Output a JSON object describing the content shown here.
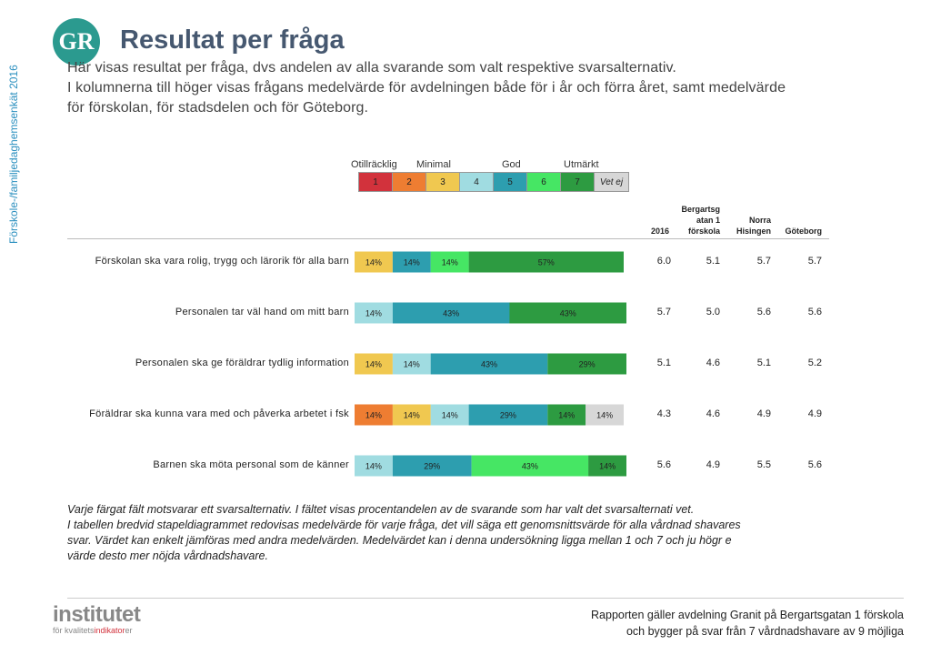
{
  "side_label": "Förskole-/familjedaghemsenkät 2016",
  "logo_text": "GR",
  "title": "Resultat per fråga",
  "intro": [
    "Här visas resultat per fråga, dvs andelen av alla svarande som valt respektive svarsalternativ.",
    "I kolumnerna till höger visas frågans medelvärde för avdelningen både för i år och förra året, samt medelvärde",
    "för förskolan, för stadsdelen och för Göteborg."
  ],
  "scale": {
    "labels": [
      "Otillräcklig",
      "Minimal",
      "God",
      "Utmärkt"
    ],
    "items": [
      {
        "label": "1",
        "color": "#d2323c"
      },
      {
        "label": "2",
        "color": "#ee7d32"
      },
      {
        "label": "3",
        "color": "#f0c850"
      },
      {
        "label": "4",
        "color": "#a0dce1"
      },
      {
        "label": "5",
        "color": "#2d9eaf"
      },
      {
        "label": "6",
        "color": "#46e664"
      },
      {
        "label": "7",
        "color": "#2d9b41"
      },
      {
        "label": "Vet ej",
        "color": "#d7d7d7"
      }
    ]
  },
  "columns": {
    "year": "2016",
    "forskola": [
      "Bergartsg",
      "atan 1",
      "förskola"
    ],
    "stadsdel": [
      "Norra",
      "Hisingen"
    ],
    "city": "Göteborg"
  },
  "chart_data": {
    "type": "bar",
    "orientation": "horizontal-stacked-100",
    "categories": [
      "Förskolan ska vara rolig, trygg och lärorik för alla barn",
      "Personalen tar väl hand om mitt barn",
      "Personalen ska ge föräldrar tydlig information",
      "Föräldrar ska kunna vara med och påverka arbetet i fsk",
      "Barnen ska möta personal som de känner"
    ],
    "series": [
      {
        "name": "1",
        "color": "#d2323c",
        "values": [
          0,
          0,
          0,
          0,
          0
        ]
      },
      {
        "name": "2",
        "color": "#ee7d32",
        "values": [
          0,
          0,
          0,
          14,
          0
        ]
      },
      {
        "name": "3",
        "color": "#f0c850",
        "values": [
          14,
          0,
          14,
          14,
          0
        ]
      },
      {
        "name": "4",
        "color": "#a0dce1",
        "values": [
          0,
          14,
          14,
          14,
          14
        ]
      },
      {
        "name": "5",
        "color": "#2d9eaf",
        "values": [
          14,
          43,
          43,
          29,
          29
        ]
      },
      {
        "name": "6",
        "color": "#46e664",
        "values": [
          14,
          0,
          0,
          0,
          43
        ]
      },
      {
        "name": "7",
        "color": "#2d9b41",
        "values": [
          57,
          43,
          29,
          14,
          14
        ]
      },
      {
        "name": "Vet ej",
        "color": "#d7d7d7",
        "values": [
          0,
          0,
          0,
          14,
          0
        ]
      }
    ],
    "xlim": [
      0,
      100
    ],
    "unit": "%",
    "table": {
      "2016": [
        "6.0",
        "5.7",
        "5.1",
        "4.3",
        "5.6"
      ],
      "forskola": [
        "5.1",
        "5.0",
        "4.6",
        "4.6",
        "4.9"
      ],
      "stadsdel": [
        "5.7",
        "5.6",
        "5.1",
        "4.9",
        "5.5"
      ],
      "city": [
        "5.7",
        "5.6",
        "5.2",
        "4.9",
        "5.6"
      ]
    }
  },
  "footnote": [
    "Varje färgat fält motsvarar ett svarsalternativ. I fältet visas procentandelen av de svarande som har valt det svarsalternati vet.",
    "I tabellen bredvid stapeldiagrammet redovisas medelvärde för varje fråga, det vill säga ett genomsnittsvärde för alla vårdnad shavares",
    "svar. Värdet kan enkelt jämföras med andra medelvärden. Medelvärdet kan i denna undersökning ligga mellan 1 och 7 och ju högr e",
    "värde desto mer nöjda vårdnadshavare."
  ],
  "institute": {
    "name": "institutet",
    "sub_prefix": "för kvalitets",
    "sub_highlight": "indikator",
    "sub_suffix": "er"
  },
  "report": [
    "Rapporten gäller avdelning Granit  på Bergartsgatan 1 förskola",
    "och bygger på svar från 7 vårdnadshavare av 9 möjliga"
  ]
}
